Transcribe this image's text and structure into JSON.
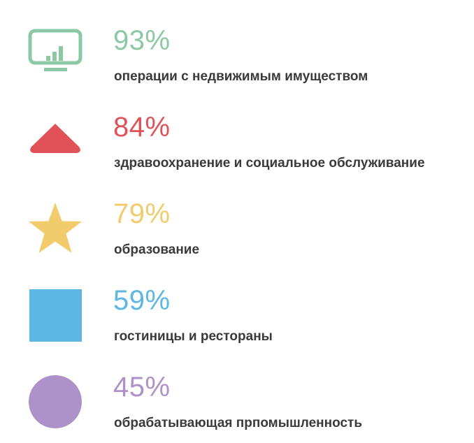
{
  "stats": [
    {
      "percent": "93%",
      "label": "операции с недвижимым имуществом",
      "color": "#8dc8a4",
      "icon": "monitor-chart-icon"
    },
    {
      "percent": "84%",
      "label": "здравоохранение и социальное обслуживание",
      "color": "#e05258",
      "icon": "triangle-icon"
    },
    {
      "percent": "79%",
      "label": "образование",
      "color": "#f2cc6c",
      "icon": "star-icon"
    },
    {
      "percent": "59%",
      "label": "гостиницы и рестораны",
      "color": "#5db6e4",
      "icon": "square-icon"
    },
    {
      "percent": "45%",
      "label": "обрабатывающая прпомышленность",
      "color": "#ac92c8",
      "icon": "circle-icon"
    }
  ]
}
